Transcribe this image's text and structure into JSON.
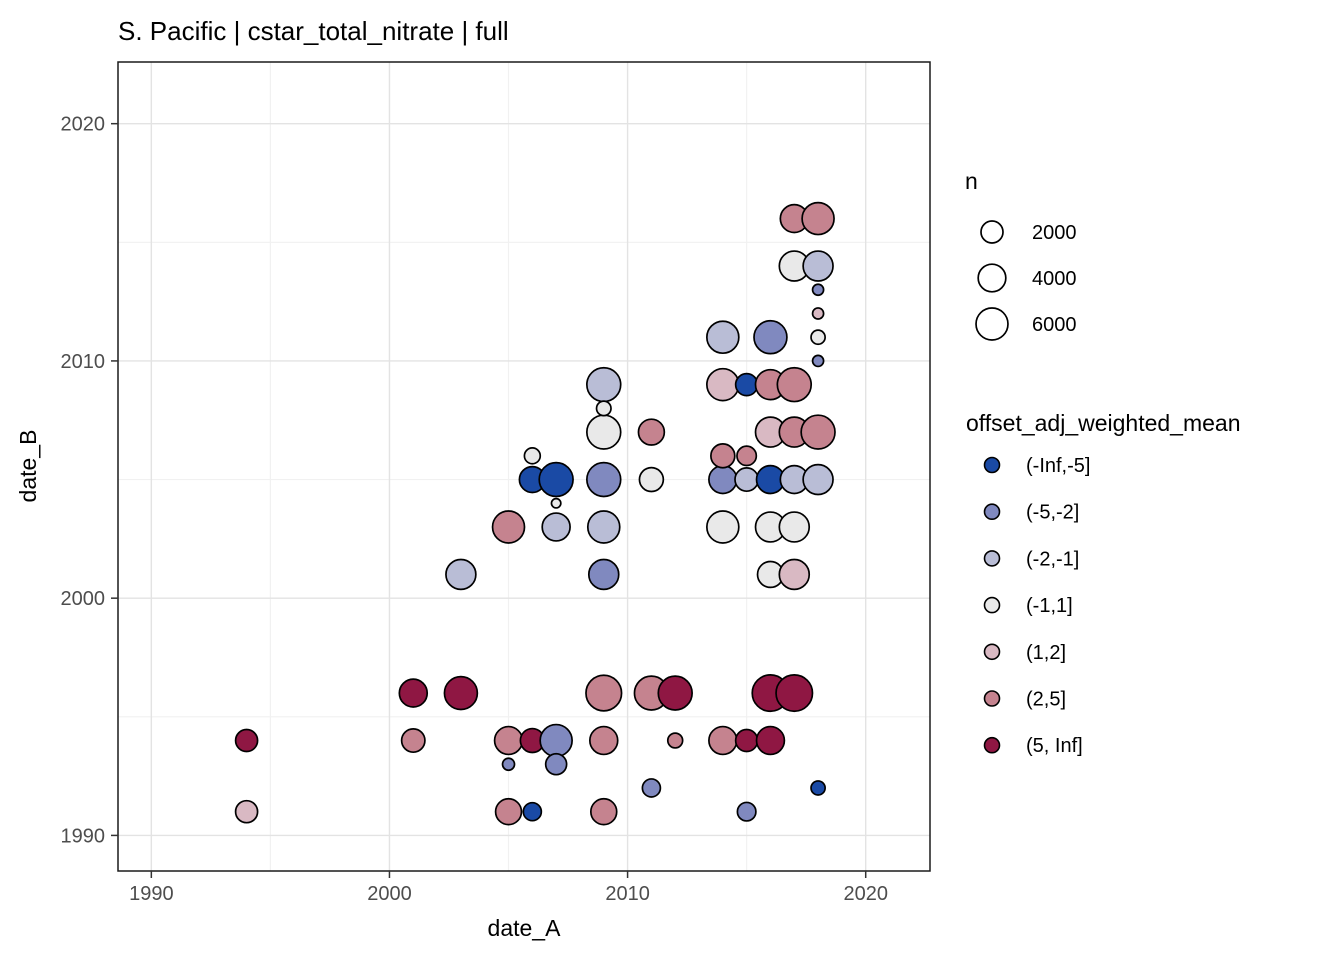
{
  "window": {
    "background": "#ffffff"
  },
  "style": {
    "panel_fill": "#ffffff",
    "panel_border": "#1a1a1a",
    "grid_major": "#e3e3e3",
    "grid_minor": "#f1f1f1",
    "tick_mark_color": "#333333",
    "tick_label_color": "#4d4d4d",
    "text_color": "#000000",
    "point_stroke": "#000000",
    "legend_key_stroke": "#000000"
  },
  "chart_data": {
    "type": "scatter",
    "title": "S. Pacific | cstar_total_nitrate | full",
    "xlabel": "date_A",
    "ylabel": "date_B",
    "x_ticks": [
      1990,
      2000,
      2010,
      2020
    ],
    "y_ticks": [
      1990,
      2000,
      2010,
      2020
    ],
    "x_minor": [
      1995,
      2005,
      2015
    ],
    "y_minor": [
      1995,
      2005,
      2015
    ],
    "xlim": [
      1988.6,
      2022.7
    ],
    "ylim": [
      1988.5,
      2022.6
    ],
    "grid": true,
    "legend_position": "right",
    "size_legend": {
      "title": "n",
      "values": [
        2000,
        4000,
        6000
      ]
    },
    "color_legend": {
      "title": "offset_adj_weighted_mean",
      "bins": [
        {
          "label": "(-Inf,-5]",
          "color": "#1a4aa5"
        },
        {
          "label": "(-5,-2]",
          "color": "#8089bf"
        },
        {
          "label": "(-2,-1]",
          "color": "#b9bdd6"
        },
        {
          "label": "(-1,1]",
          "color": "#e9e9e9"
        },
        {
          "label": "(1,2]",
          "color": "#d9b9c3"
        },
        {
          "label": "(2,5]",
          "color": "#c5838f"
        },
        {
          "label": "(5, Inf]",
          "color": "#8f1743"
        }
      ]
    },
    "points": [
      {
        "x": 1994,
        "y": 1994,
        "n": 2000,
        "bin": "(5, Inf]"
      },
      {
        "x": 1994,
        "y": 1991,
        "n": 2000,
        "bin": "(1,2]"
      },
      {
        "x": 2001,
        "y": 1996,
        "n": 4100,
        "bin": "(5, Inf]"
      },
      {
        "x": 2001,
        "y": 1994,
        "n": 2400,
        "bin": "(2,5]"
      },
      {
        "x": 2003,
        "y": 2001,
        "n": 5000,
        "bin": "(-2,-1]"
      },
      {
        "x": 2003,
        "y": 1996,
        "n": 6500,
        "bin": "(5, Inf]"
      },
      {
        "x": 2005,
        "y": 2003,
        "n": 6000,
        "bin": "(2,5]"
      },
      {
        "x": 2005,
        "y": 1994,
        "n": 4100,
        "bin": "(2,5]"
      },
      {
        "x": 2005,
        "y": 1993,
        "n": 140,
        "bin": "(-5,-2]"
      },
      {
        "x": 2005,
        "y": 1991,
        "n": 3300,
        "bin": "(2,5]"
      },
      {
        "x": 2006,
        "y": 2006,
        "n": 600,
        "bin": "(-1,1]"
      },
      {
        "x": 2006,
        "y": 2005,
        "n": 3300,
        "bin": "(-Inf,-5]"
      },
      {
        "x": 2006,
        "y": 1994,
        "n": 2600,
        "bin": "(5, Inf]"
      },
      {
        "x": 2006,
        "y": 1991,
        "n": 1000,
        "bin": "(-Inf,-5]"
      },
      {
        "x": 2007,
        "y": 2005,
        "n": 7000,
        "bin": "(-Inf,-5]"
      },
      {
        "x": 2007,
        "y": 2004,
        "n": 10,
        "bin": "(-1,1]"
      },
      {
        "x": 2007,
        "y": 2003,
        "n": 4100,
        "bin": "(-2,-1]"
      },
      {
        "x": 2007,
        "y": 1994,
        "n": 6000,
        "bin": "(-5,-2]"
      },
      {
        "x": 2007,
        "y": 1993,
        "n": 1700,
        "bin": "(-5,-2]"
      },
      {
        "x": 2009,
        "y": 2009,
        "n": 7000,
        "bin": "(-2,-1]"
      },
      {
        "x": 2009,
        "y": 2008,
        "n": 400,
        "bin": "(-1,1]"
      },
      {
        "x": 2009,
        "y": 2007,
        "n": 7000,
        "bin": "(-1,1]"
      },
      {
        "x": 2009,
        "y": 2005,
        "n": 7000,
        "bin": "(-5,-2]"
      },
      {
        "x": 2009,
        "y": 2003,
        "n": 6000,
        "bin": "(-2,-1]"
      },
      {
        "x": 2009,
        "y": 2001,
        "n": 5000,
        "bin": "(-5,-2]"
      },
      {
        "x": 2009,
        "y": 1996,
        "n": 8000,
        "bin": "(2,5]"
      },
      {
        "x": 2009,
        "y": 1994,
        "n": 4100,
        "bin": "(2,5]"
      },
      {
        "x": 2009,
        "y": 1991,
        "n": 3300,
        "bin": "(2,5]"
      },
      {
        "x": 2011,
        "y": 2007,
        "n": 3300,
        "bin": "(2,5]"
      },
      {
        "x": 2011,
        "y": 2005,
        "n": 2600,
        "bin": "(-1,1]"
      },
      {
        "x": 2011,
        "y": 1996,
        "n": 7000,
        "bin": "(2,5]"
      },
      {
        "x": 2011,
        "y": 1992,
        "n": 1000,
        "bin": "(-5,-2]"
      },
      {
        "x": 2012,
        "y": 1996,
        "n": 7000,
        "bin": "(5, Inf]"
      },
      {
        "x": 2012,
        "y": 1994,
        "n": 450,
        "bin": "(2,5]"
      },
      {
        "x": 2014,
        "y": 2011,
        "n": 6000,
        "bin": "(-2,-1]"
      },
      {
        "x": 2014,
        "y": 2009,
        "n": 6000,
        "bin": "(1,2]"
      },
      {
        "x": 2014,
        "y": 2006,
        "n": 2600,
        "bin": "(2,5]"
      },
      {
        "x": 2014,
        "y": 2005,
        "n": 4100,
        "bin": "(-5,-2]"
      },
      {
        "x": 2014,
        "y": 2003,
        "n": 6000,
        "bin": "(-1,1]"
      },
      {
        "x": 2014,
        "y": 1994,
        "n": 4100,
        "bin": "(2,5]"
      },
      {
        "x": 2015,
        "y": 2009,
        "n": 2000,
        "bin": "(-Inf,-5]"
      },
      {
        "x": 2015,
        "y": 2006,
        "n": 1300,
        "bin": "(2,5]"
      },
      {
        "x": 2015,
        "y": 2005,
        "n": 2400,
        "bin": "(-2,-1]"
      },
      {
        "x": 2015,
        "y": 1994,
        "n": 2000,
        "bin": "(5, Inf]"
      },
      {
        "x": 2015,
        "y": 1991,
        "n": 1100,
        "bin": "(-5,-2]"
      },
      {
        "x": 2016,
        "y": 2011,
        "n": 6500,
        "bin": "(-5,-2]"
      },
      {
        "x": 2016,
        "y": 2009,
        "n": 5000,
        "bin": "(2,5]"
      },
      {
        "x": 2016,
        "y": 2007,
        "n": 5000,
        "bin": "(1,2]"
      },
      {
        "x": 2016,
        "y": 2005,
        "n": 4100,
        "bin": "(-Inf,-5]"
      },
      {
        "x": 2016,
        "y": 2003,
        "n": 5000,
        "bin": "(-1,1]"
      },
      {
        "x": 2016,
        "y": 2001,
        "n": 3300,
        "bin": "(-1,1]"
      },
      {
        "x": 2016,
        "y": 1996,
        "n": 8500,
        "bin": "(5, Inf]"
      },
      {
        "x": 2016,
        "y": 1994,
        "n": 4100,
        "bin": "(5, Inf]"
      },
      {
        "x": 2017,
        "y": 2016,
        "n": 4100,
        "bin": "(2,5]"
      },
      {
        "x": 2017,
        "y": 2014,
        "n": 5000,
        "bin": "(-1,1]"
      },
      {
        "x": 2017,
        "y": 2009,
        "n": 7000,
        "bin": "(2,5]"
      },
      {
        "x": 2017,
        "y": 2007,
        "n": 5000,
        "bin": "(2,5]"
      },
      {
        "x": 2017,
        "y": 2005,
        "n": 4100,
        "bin": "(-2,-1]"
      },
      {
        "x": 2017,
        "y": 2003,
        "n": 5000,
        "bin": "(-1,1]"
      },
      {
        "x": 2017,
        "y": 2001,
        "n": 5000,
        "bin": "(1,2]"
      },
      {
        "x": 2017,
        "y": 1996,
        "n": 8500,
        "bin": "(5, Inf]"
      },
      {
        "x": 2018,
        "y": 2016,
        "n": 6000,
        "bin": "(2,5]"
      },
      {
        "x": 2018,
        "y": 2014,
        "n": 5000,
        "bin": "(-2,-1]"
      },
      {
        "x": 2018,
        "y": 2013,
        "n": 75,
        "bin": "(-5,-2]"
      },
      {
        "x": 2018,
        "y": 2012,
        "n": 75,
        "bin": "(1,2]"
      },
      {
        "x": 2018,
        "y": 2011,
        "n": 350,
        "bin": "(-1,1]"
      },
      {
        "x": 2018,
        "y": 2010,
        "n": 75,
        "bin": "(-5,-2]"
      },
      {
        "x": 2018,
        "y": 2007,
        "n": 7000,
        "bin": "(2,5]"
      },
      {
        "x": 2018,
        "y": 2005,
        "n": 5000,
        "bin": "(-2,-1]"
      },
      {
        "x": 2018,
        "y": 1992,
        "n": 350,
        "bin": "(-Inf,-5]"
      }
    ]
  }
}
